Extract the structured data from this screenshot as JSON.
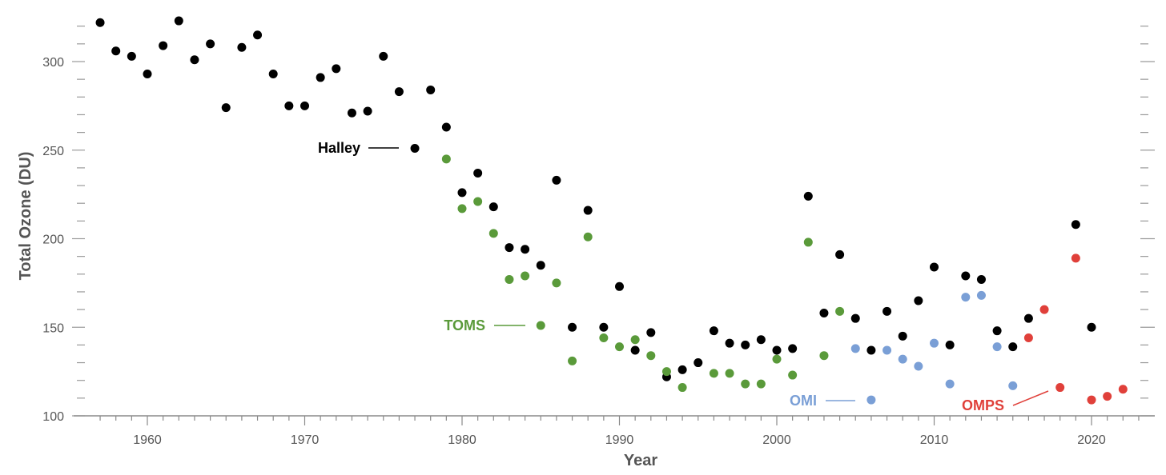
{
  "chart_data": {
    "type": "scatter",
    "title": "",
    "xlabel": "Year",
    "ylabel": "Total Ozone (DU)",
    "xlim": [
      1955,
      2024
    ],
    "ylim": [
      100,
      325
    ],
    "x_ticks": [
      1960,
      1970,
      1980,
      1990,
      2000,
      2010,
      2020
    ],
    "y_ticks": [
      100,
      150,
      200,
      250,
      300
    ],
    "grid": false,
    "legend": "inline labels",
    "series": [
      {
        "name": "Halley",
        "color": "#000000",
        "points": [
          [
            1957,
            322
          ],
          [
            1958,
            306
          ],
          [
            1959,
            303
          ],
          [
            1960,
            293
          ],
          [
            1961,
            309
          ],
          [
            1962,
            323
          ],
          [
            1963,
            301
          ],
          [
            1964,
            310
          ],
          [
            1965,
            274
          ],
          [
            1966,
            308
          ],
          [
            1967,
            315
          ],
          [
            1968,
            293
          ],
          [
            1969,
            275
          ],
          [
            1970,
            275
          ],
          [
            1971,
            291
          ],
          [
            1972,
            296
          ],
          [
            1973,
            271
          ],
          [
            1974,
            272
          ],
          [
            1975,
            303
          ],
          [
            1976,
            283
          ],
          [
            1977,
            251
          ],
          [
            1978,
            284
          ],
          [
            1979,
            263
          ],
          [
            1980,
            226
          ],
          [
            1981,
            237
          ],
          [
            1982,
            218
          ],
          [
            1983,
            195
          ],
          [
            1984,
            194
          ],
          [
            1985,
            185
          ],
          [
            1986,
            233
          ],
          [
            1987,
            150
          ],
          [
            1988,
            216
          ],
          [
            1989,
            150
          ],
          [
            1990,
            173
          ],
          [
            1991,
            137
          ],
          [
            1992,
            147
          ],
          [
            1993,
            122
          ],
          [
            1994,
            126
          ],
          [
            1995,
            130
          ],
          [
            1996,
            148
          ],
          [
            1997,
            141
          ],
          [
            1998,
            140
          ],
          [
            1999,
            143
          ],
          [
            2000,
            137
          ],
          [
            2001,
            138
          ],
          [
            2002,
            224
          ],
          [
            2003,
            158
          ],
          [
            2004,
            191
          ],
          [
            2005,
            155
          ],
          [
            2006,
            137
          ],
          [
            2007,
            159
          ],
          [
            2008,
            145
          ],
          [
            2009,
            165
          ],
          [
            2010,
            184
          ],
          [
            2011,
            140
          ],
          [
            2012,
            179
          ],
          [
            2013,
            177
          ],
          [
            2014,
            148
          ],
          [
            2015,
            139
          ],
          [
            2016,
            155
          ],
          [
            2019,
            208
          ],
          [
            2020,
            150
          ]
        ]
      },
      {
        "name": "TOMS",
        "color": "#5a9a3a",
        "points": [
          [
            1979,
            245
          ],
          [
            1980,
            217
          ],
          [
            1981,
            221
          ],
          [
            1982,
            203
          ],
          [
            1983,
            177
          ],
          [
            1984,
            179
          ],
          [
            1985,
            151
          ],
          [
            1986,
            175
          ],
          [
            1987,
            131
          ],
          [
            1988,
            201
          ],
          [
            1989,
            144
          ],
          [
            1990,
            139
          ],
          [
            1991,
            143
          ],
          [
            1992,
            134
          ],
          [
            1993,
            125
          ],
          [
            1994,
            116
          ],
          [
            1996,
            124
          ],
          [
            1997,
            124
          ],
          [
            1998,
            118
          ],
          [
            1999,
            118
          ],
          [
            2000,
            132
          ],
          [
            2001,
            123
          ],
          [
            2002,
            198
          ],
          [
            2003,
            134
          ],
          [
            2004,
            159
          ]
        ]
      },
      {
        "name": "OMI",
        "color": "#7a9fd6",
        "points": [
          [
            2005,
            138
          ],
          [
            2006,
            109
          ],
          [
            2007,
            137
          ],
          [
            2008,
            132
          ],
          [
            2009,
            128
          ],
          [
            2010,
            141
          ],
          [
            2011,
            118
          ],
          [
            2012,
            167
          ],
          [
            2013,
            168
          ],
          [
            2014,
            139
          ],
          [
            2015,
            117
          ]
        ]
      },
      {
        "name": "OMPS",
        "color": "#e0403a",
        "points": [
          [
            2016,
            144
          ],
          [
            2017,
            160
          ],
          [
            2018,
            116
          ],
          [
            2019,
            189
          ],
          [
            2020,
            109
          ],
          [
            2021,
            111
          ],
          [
            2022,
            115
          ]
        ]
      }
    ]
  }
}
